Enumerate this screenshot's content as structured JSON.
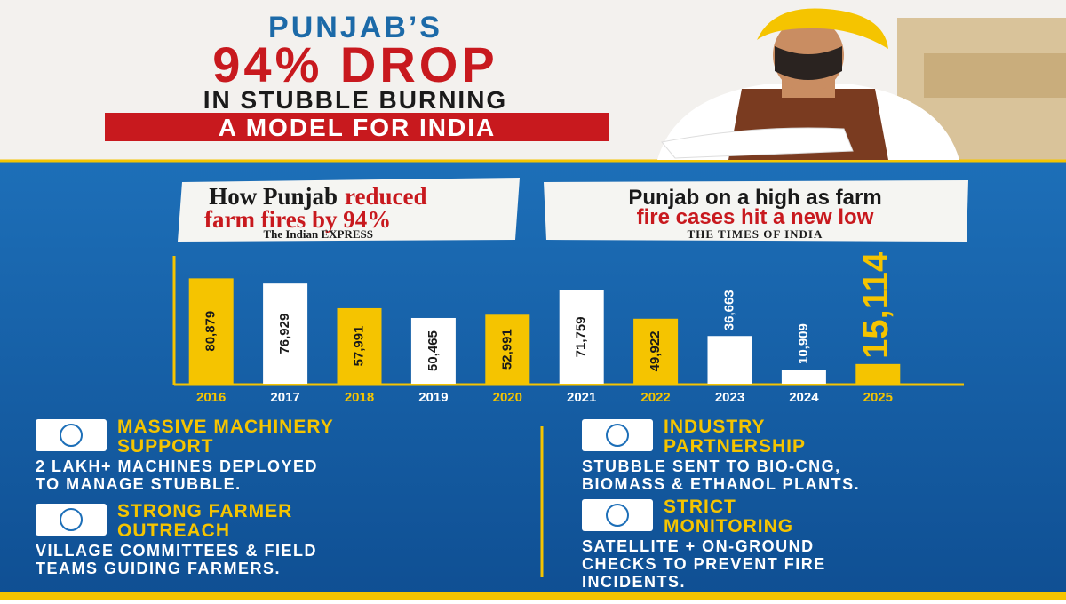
{
  "header": {
    "title_line1": "PUNJAB’S",
    "title_line2": "94% DROP",
    "title_line3": "IN STUBBLE BURNING",
    "tagline": "A MODEL FOR INDIA"
  },
  "headlines": [
    {
      "parts": [
        "How Punjab",
        "reduced",
        "farm fires by 94%"
      ],
      "source": "The Indian EXPRESS"
    },
    {
      "parts": [
        "Punjab on a high as farm",
        "fire cases hit a new low"
      ],
      "source": "THE TIMES OF INDIA"
    }
  ],
  "chart_data": {
    "type": "bar",
    "categories": [
      "2016",
      "2017",
      "2018",
      "2019",
      "2020",
      "2021",
      "2022",
      "2023",
      "2024",
      "2025"
    ],
    "values": [
      80879,
      76929,
      57991,
      50465,
      52991,
      71759,
      49922,
      36663,
      10909,
      15114
    ],
    "value_labels": [
      "80,879",
      "76,929",
      "57,991",
      "50,465",
      "52,991",
      "71,759",
      "49,922",
      "36,663",
      "10,909",
      "15,114"
    ],
    "colors": [
      "#f5c400",
      "#ffffff",
      "#f5c400",
      "#ffffff",
      "#f5c400",
      "#ffffff",
      "#f5c400",
      "#ffffff",
      "#ffffff",
      "#f5c400"
    ],
    "ylim": [
      0,
      90000
    ]
  },
  "features": [
    {
      "title_lines": [
        "MASSIVE MACHINERY",
        "SUPPORT"
      ],
      "description_lines": [
        "2 LAKH+ MACHINES DEPLOYED",
        "TO MANAGE STUBBLE."
      ]
    },
    {
      "title_lines": [
        "STRONG FARMER",
        "OUTREACH"
      ],
      "description_lines": [
        "VILLAGE COMMITTEES & FIELD",
        "TEAMS GUIDING FARMERS."
      ]
    },
    {
      "title_lines": [
        "INDUSTRY",
        "PARTNERSHIP"
      ],
      "description_lines": [
        "STUBBLE SENT TO BIO-CNG,",
        "BIOMASS & ETHANOL PLANTS."
      ]
    },
    {
      "title_lines": [
        "STRICT",
        "MONITORING"
      ],
      "description_lines": [
        "SATELLITE + ON-GROUND",
        "CHECKS TO PREVENT FIRE",
        "INCIDENTS."
      ]
    }
  ]
}
